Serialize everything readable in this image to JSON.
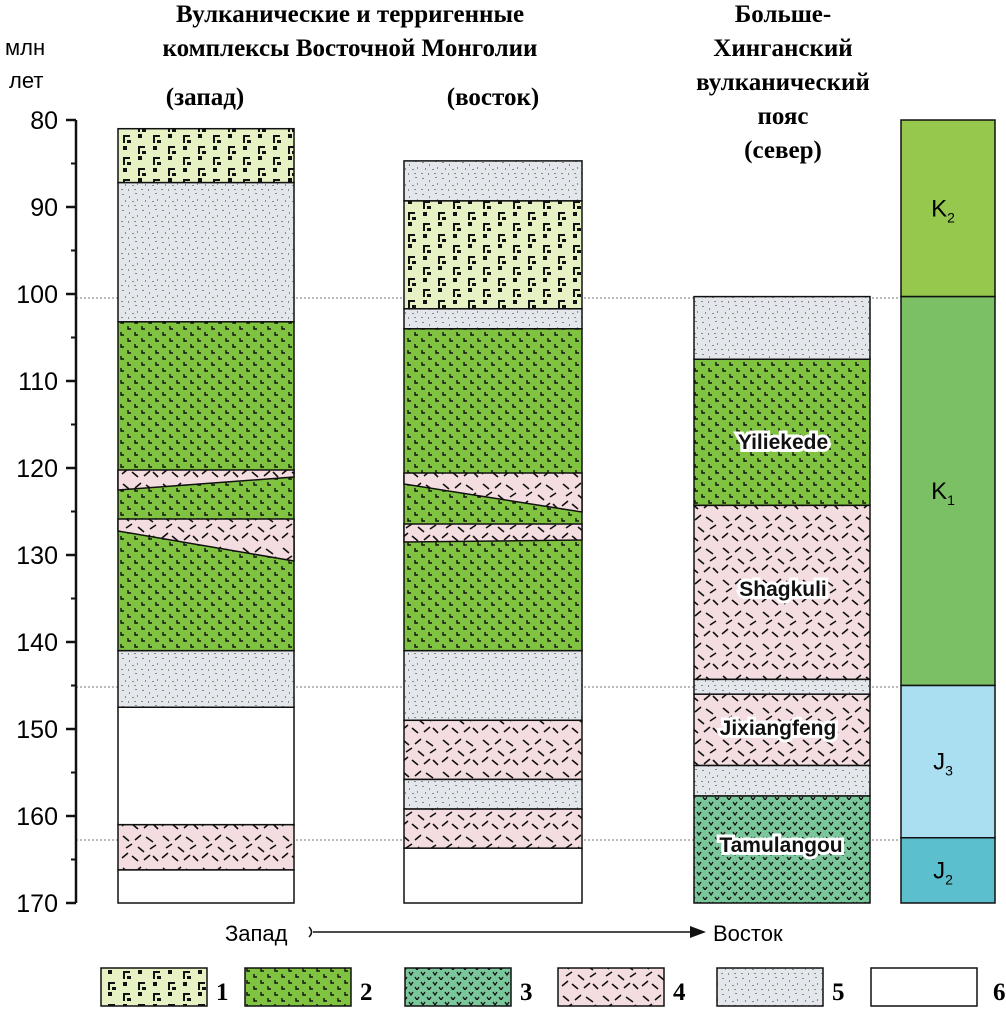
{
  "axis": {
    "unit_line1": "млн",
    "unit_line2": "лет",
    "ticks": [
      80,
      90,
      100,
      110,
      120,
      130,
      140,
      150,
      160,
      170
    ]
  },
  "headers": {
    "east_mongolia_line1": "Вулканические и терригенные",
    "east_mongolia_line2": "комплексы Восточной Монголии",
    "west": "(запад)",
    "east": "(восток)",
    "khingan_line1": "Больше-",
    "khingan_line2": "Хинганский",
    "khingan_line3": "вулканический",
    "khingan_line4": "пояс",
    "khingan_line5": "(север)"
  },
  "formations": {
    "yiliekede": "Yiliekede",
    "shagkuli": "Shagkuli",
    "jixiangfeng": "Jixiangfeng",
    "tamulangou": "Tamulangou"
  },
  "periods": [
    {
      "sym": "K",
      "sub": "2",
      "from": 80,
      "to": 100.3,
      "color": "#96c84e"
    },
    {
      "sym": "K",
      "sub": "1",
      "from": 100.3,
      "to": 145,
      "color": "#7cc065"
    },
    {
      "sym": "J",
      "sub": "3",
      "from": 145,
      "to": 162.5,
      "color": "#a9dff0"
    },
    {
      "sym": "J",
      "sub": "2",
      "from": 162.5,
      "to": 170,
      "color": "#5bbfcd"
    }
  ],
  "direction": {
    "from": "Запад",
    "to": "Восток"
  },
  "legend": [
    "1",
    "2",
    "3",
    "4",
    "5",
    "6"
  ],
  "columns": {
    "west": [
      {
        "type": 1,
        "from": 81,
        "to": 87.2
      },
      {
        "type": 5,
        "from": 87.2,
        "to": 103.2
      },
      {
        "type": 2,
        "from": 103.2,
        "to": 141
      },
      {
        "type": 5,
        "from": 141,
        "to": 147.5
      },
      {
        "type": 6,
        "from": 147.5,
        "to": 161
      },
      {
        "type": 4,
        "from": 161,
        "to": 166.2
      },
      {
        "type": 6,
        "from": 166.2,
        "to": 170
      }
    ],
    "east": [
      {
        "type": 5,
        "from": 84.7,
        "to": 89.3
      },
      {
        "type": 1,
        "from": 89.3,
        "to": 101.7
      },
      {
        "type": 5,
        "from": 101.7,
        "to": 104
      },
      {
        "type": 2,
        "from": 104,
        "to": 141
      },
      {
        "type": 5,
        "from": 141,
        "to": 149
      },
      {
        "type": 4,
        "from": 149,
        "to": 155.8
      },
      {
        "type": 5,
        "from": 155.8,
        "to": 159.2
      },
      {
        "type": 4,
        "from": 159.2,
        "to": 163.7
      },
      {
        "type": 6,
        "from": 163.7,
        "to": 170
      }
    ],
    "khingan": [
      {
        "type": 5,
        "from": 100.3,
        "to": 107.5
      },
      {
        "type": 2,
        "from": 107.5,
        "to": 124.3
      },
      {
        "type": 4,
        "from": 124.3,
        "to": 144.3
      },
      {
        "type": 5,
        "from": 144.3,
        "to": 146
      },
      {
        "type": 4,
        "from": 146,
        "to": 154.2
      },
      {
        "type": 5,
        "from": 154.2,
        "to": 157.7
      },
      {
        "type": 3,
        "from": 157.7,
        "to": 170
      }
    ]
  },
  "colors": {
    "type1_bg": "#e6f2c4",
    "type2_bg": "#80c341",
    "type3_bg": "#7bc79c",
    "type4_bg": "#f4dde0",
    "type5_bg": "#e3e7ec",
    "type6_bg": "#ffffff",
    "dots": "#9a9a9a"
  }
}
